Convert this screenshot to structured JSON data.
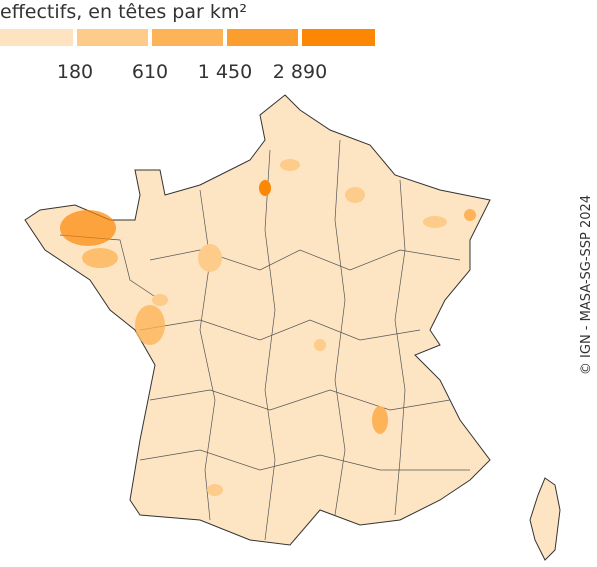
{
  "legend": {
    "title": "effectifs, en têtes par km²",
    "colors": [
      "#fde3c0",
      "#fdcb8a",
      "#fdb458",
      "#fc9e2e",
      "#fc8705"
    ],
    "thresholds": [
      180,
      610,
      {
        "value": 1450,
        "label": "1 450"
      },
      {
        "value": 2890,
        "label": "2 890"
      }
    ]
  },
  "credit": "© IGN - MASA-SG-SSP 2024"
}
